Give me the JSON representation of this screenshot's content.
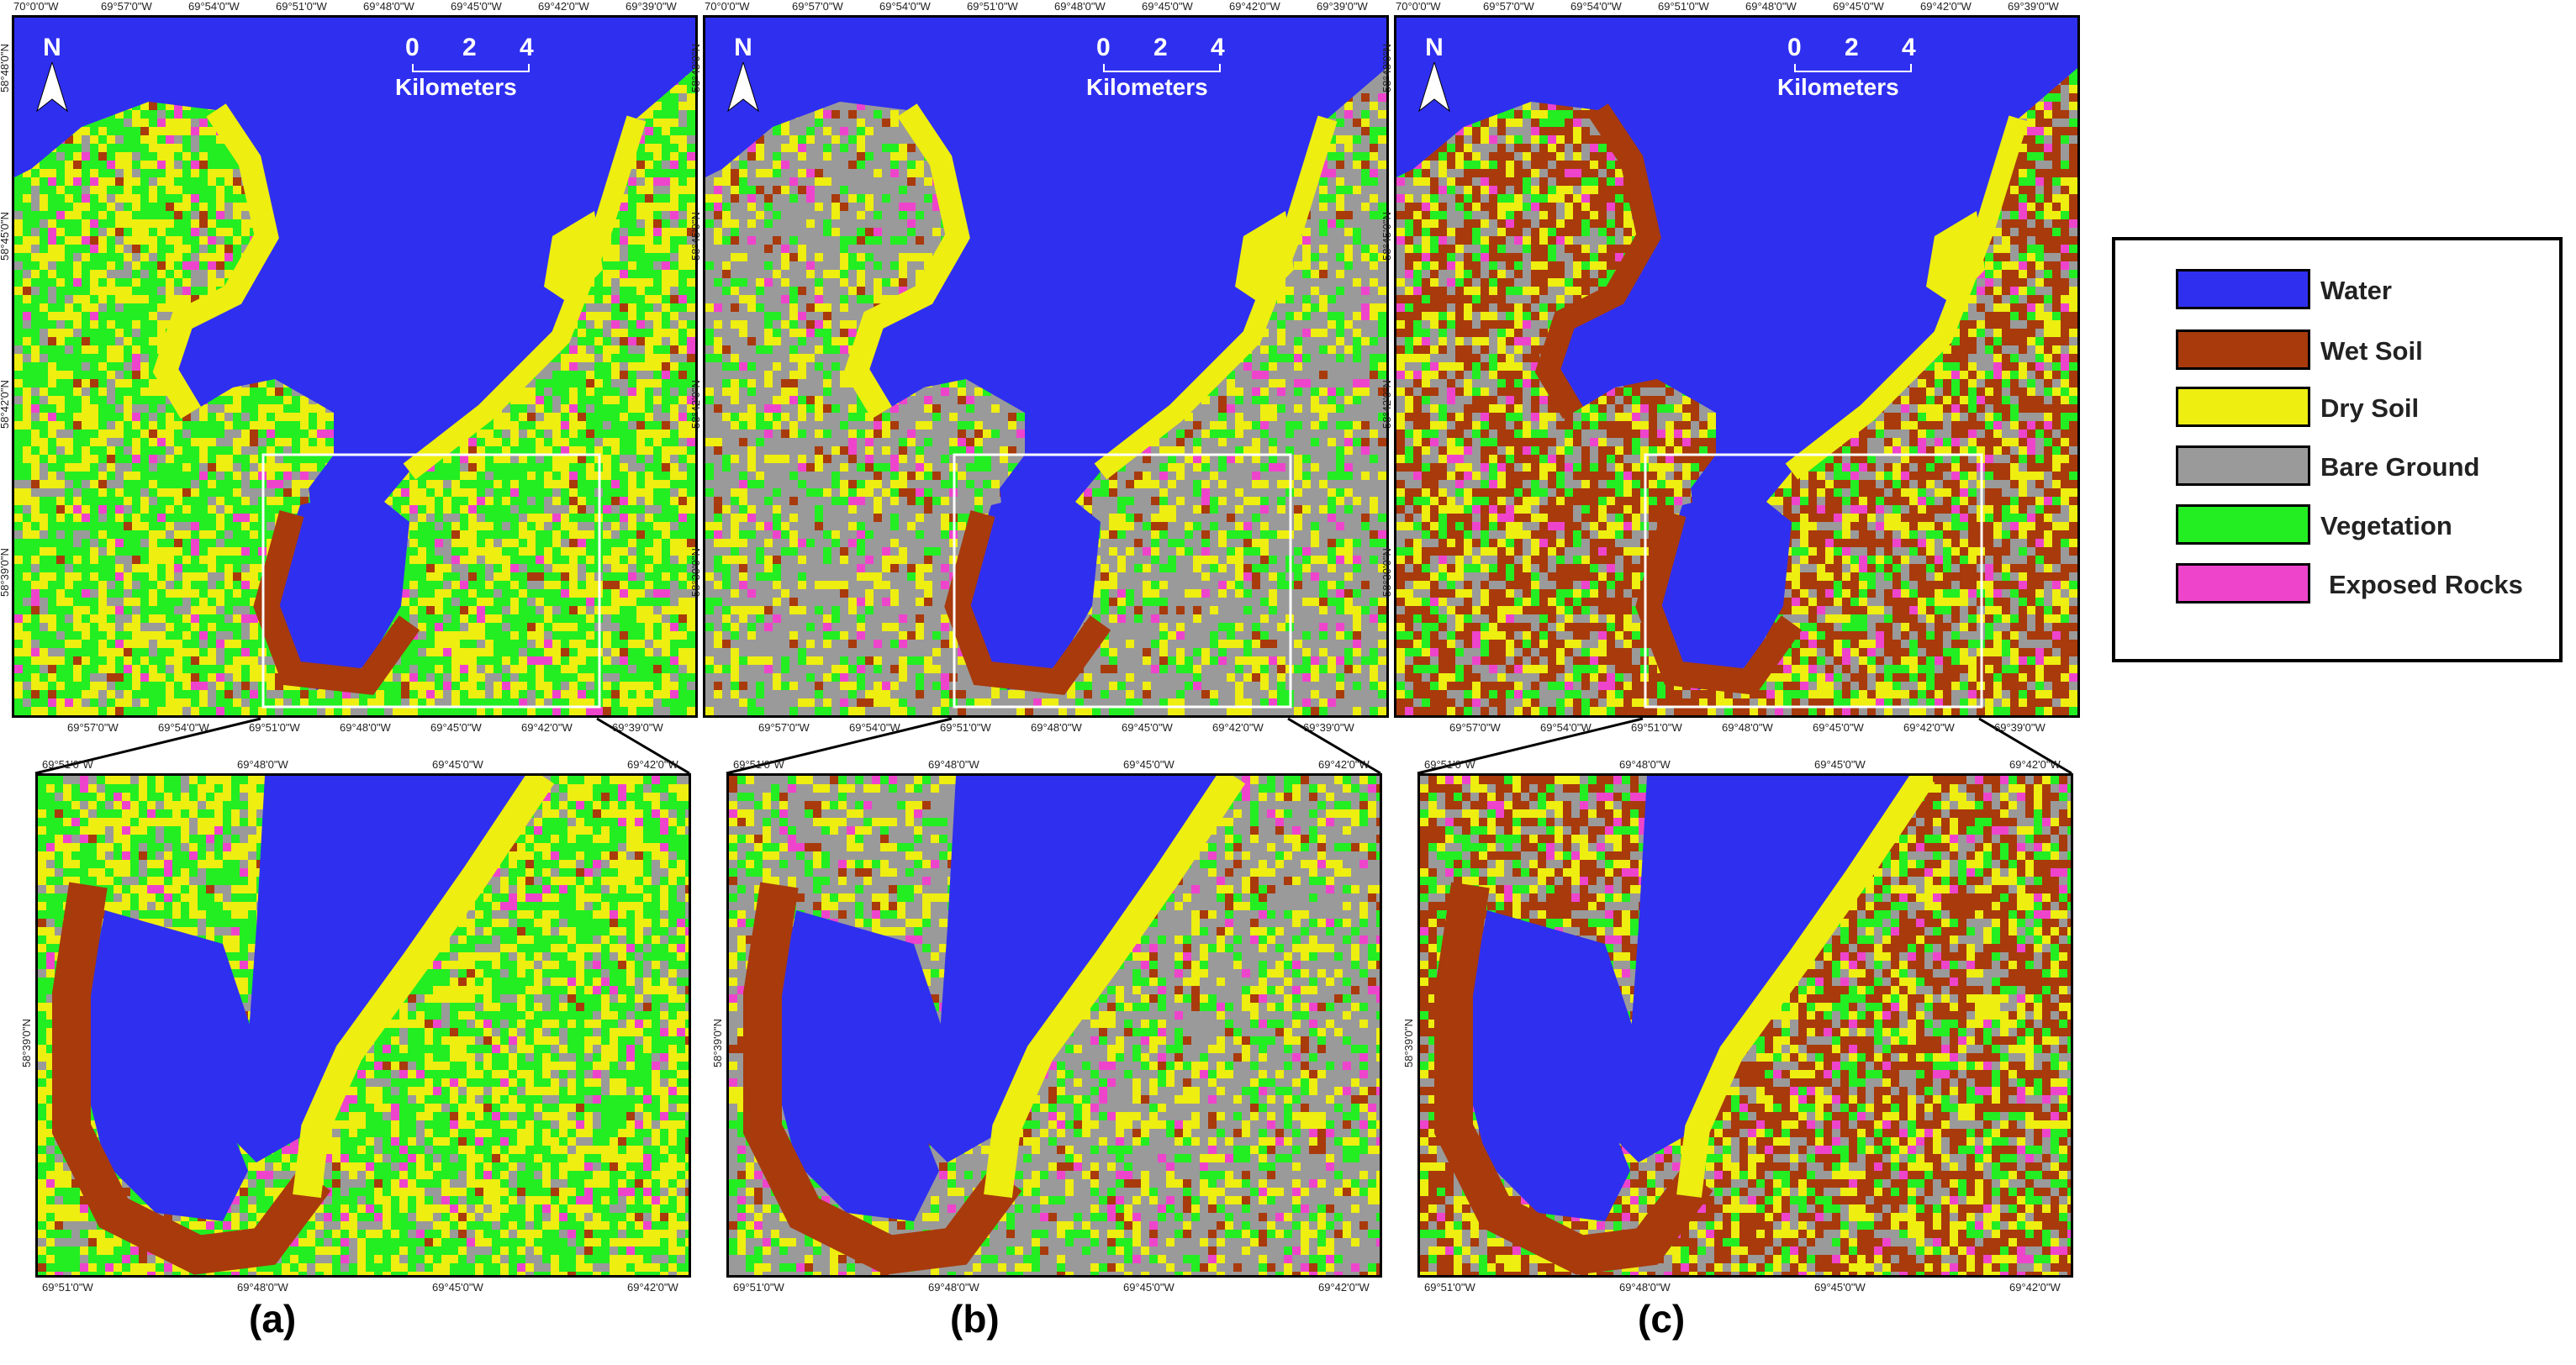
{
  "panels": [
    {
      "id": "a",
      "caption": "(a)",
      "scheme": "a"
    },
    {
      "id": "b",
      "caption": "(b)",
      "scheme": "b"
    },
    {
      "id": "c",
      "caption": "(c)",
      "scheme": "c"
    }
  ],
  "scale_bar": {
    "ticks": [
      "0",
      "2",
      "4"
    ],
    "unit": "Kilometers"
  },
  "north_label": "N",
  "top_ticks": [
    "70°0'0\"W",
    "69°57'0\"W",
    "69°54'0\"W",
    "69°51'0\"W",
    "69°48'0\"W",
    "69°45'0\"W",
    "69°42'0\"W",
    "69°39'0\"W"
  ],
  "bottom_ticks": [
    "69°57'0\"W",
    "69°54'0\"W",
    "69°51'0\"W",
    "69°48'0\"W",
    "69°45'0\"W",
    "69°42'0\"W",
    "69°39'0\"W"
  ],
  "left_ticks": [
    "58°48'0\"N",
    "58°45'0\"N",
    "58°42'0\"N",
    "58°39'0\"N"
  ],
  "zoom_top_ticks": [
    "69°51'0\"W",
    "69°48'0\"W",
    "69°45'0\"W",
    "69°42'0\"W"
  ],
  "zoom_bottom_ticks": [
    "69°51'0\"W",
    "69°48'0\"W",
    "69°45'0\"W",
    "69°42'0\"W"
  ],
  "zoom_left_ticks": [
    "58°39'0\"N"
  ],
  "legend": [
    {
      "label": "Water",
      "color": "#2f2ff0"
    },
    {
      "label": "Wet Soil",
      "color": "#a83a0c"
    },
    {
      "label": "Dry Soil",
      "color": "#eeee10"
    },
    {
      "label": "Bare Ground",
      "color": "#9a9a9a"
    },
    {
      "label": "Vegetation",
      "color": "#22ee22"
    },
    {
      "label": "Exposed Rocks",
      "color": "#ee44cc"
    }
  ],
  "colors": {
    "water": "#2f2ff0",
    "wet": "#a83a0c",
    "dry": "#eeee10",
    "bare": "#9a9a9a",
    "veg": "#22ee22",
    "rock": "#ee44cc"
  }
}
